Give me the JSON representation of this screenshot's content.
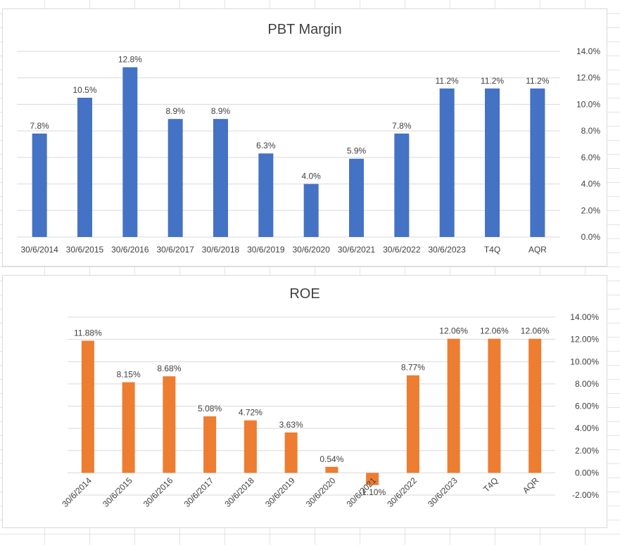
{
  "chart_data": [
    {
      "type": "bar",
      "title": "PBT Margin",
      "categories": [
        "30/6/2014",
        "30/6/2015",
        "30/6/2016",
        "30/6/2017",
        "30/6/2018",
        "30/6/2019",
        "30/6/2020",
        "30/6/2021",
        "30/6/2022",
        "30/6/2023",
        "T4Q",
        "AQR"
      ],
      "values": [
        7.8,
        10.5,
        12.8,
        8.9,
        8.9,
        6.3,
        4.0,
        5.9,
        7.8,
        11.2,
        11.2,
        11.2
      ],
      "data_labels": [
        "7.8%",
        "10.5%",
        "12.8%",
        "8.9%",
        "8.9%",
        "6.3%",
        "4.0%",
        "5.9%",
        "7.8%",
        "11.2%",
        "11.2%",
        "11.2%"
      ],
      "y_ticks": [
        "0.0%",
        "2.0%",
        "4.0%",
        "6.0%",
        "8.0%",
        "10.0%",
        "12.0%",
        "14.0%"
      ],
      "ylim": [
        0,
        14
      ],
      "y_axis_side": "right",
      "grid": true,
      "legend": "none",
      "color": "#4472c4"
    },
    {
      "type": "bar",
      "title": "ROE",
      "categories": [
        "30/6/2014",
        "30/6/2015",
        "30/6/2016",
        "30/6/2017",
        "30/6/2018",
        "30/6/2019",
        "30/6/2020",
        "30/6/2021",
        "30/6/2022",
        "30/6/2023",
        "T4Q",
        "AQR"
      ],
      "values": [
        11.88,
        8.15,
        8.68,
        5.08,
        4.72,
        3.63,
        0.54,
        -1.1,
        8.77,
        12.06,
        12.06,
        12.06
      ],
      "data_labels": [
        "11.88%",
        "8.15%",
        "8.68%",
        "5.08%",
        "4.72%",
        "3.63%",
        "0.54%",
        "-1.10%",
        "8.77%",
        "12.06%",
        "12.06%",
        "12.06%"
      ],
      "y_ticks": [
        "-2.00%",
        "0.00%",
        "2.00%",
        "4.00%",
        "6.00%",
        "8.00%",
        "10.00%",
        "12.00%",
        "14.00%"
      ],
      "ylim": [
        -2,
        14
      ],
      "y_axis_side": "right",
      "grid": true,
      "legend": "none",
      "color": "#ed7d31"
    }
  ]
}
